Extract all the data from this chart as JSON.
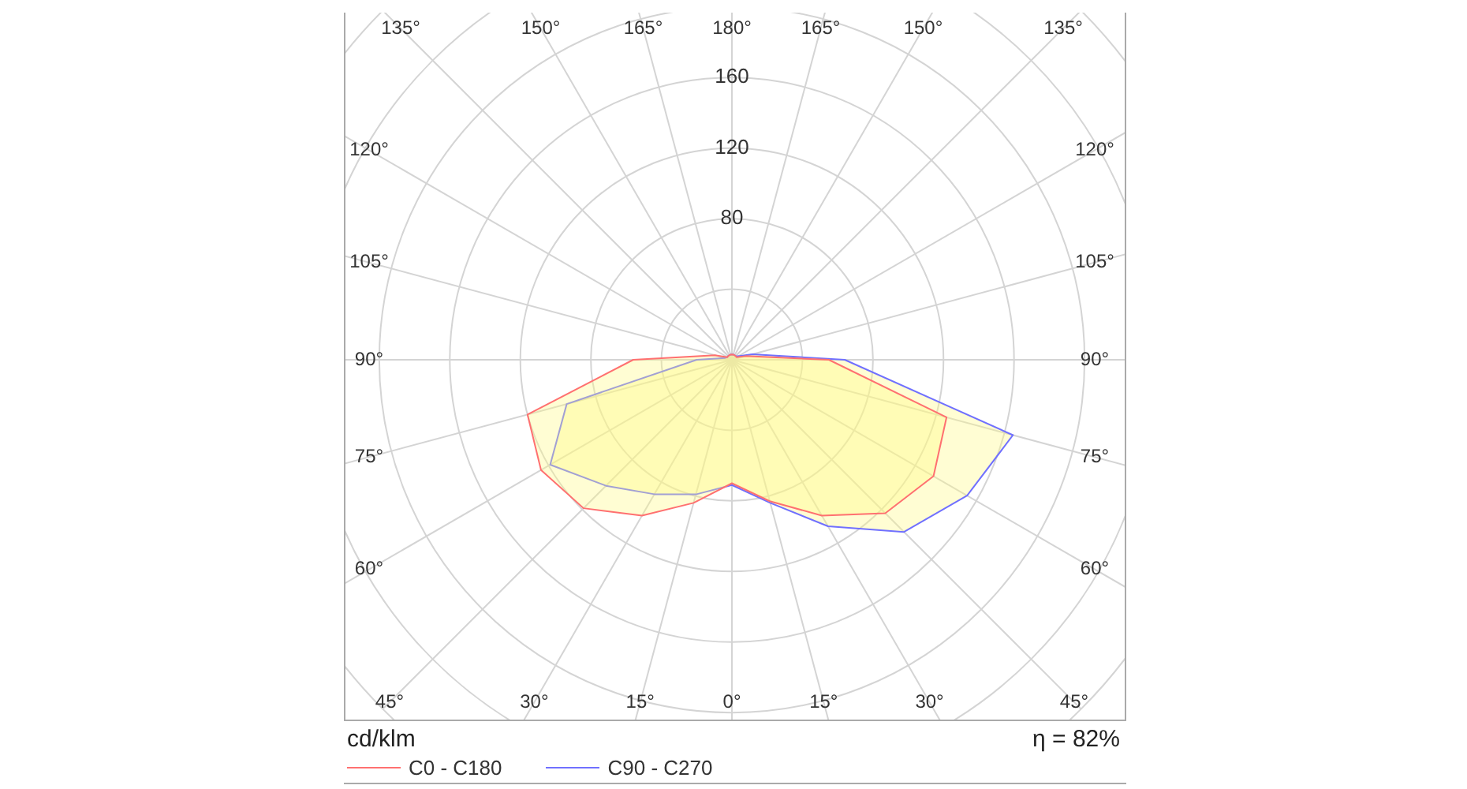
{
  "chart_data": {
    "type": "radar",
    "categories": [
      "180°",
      "165°",
      "150°",
      "135°",
      "120°",
      "105°",
      "90°",
      "75°",
      "60°",
      "45°",
      "30°",
      "15°",
      "0°",
      "15°",
      "30°",
      "45°",
      "60°",
      "75°",
      "90°",
      "105°",
      "120°",
      "135°",
      "150°",
      "165°"
    ],
    "series": [
      {
        "name": "C0 - C180",
        "color": "#ff7070",
        "values": [
          3,
          3,
          3,
          3,
          3,
          8,
          55,
          126,
          132,
          123,
          102,
          83,
          70,
          84,
          102,
          119,
          125,
          120,
          56,
          10,
          3,
          3,
          3,
          3
        ]
      },
      {
        "name": "C90 - C270",
        "color": "#7070ff",
        "values": [
          3,
          3,
          3,
          3,
          4,
          12,
          64,
          165,
          154,
          138,
          109,
          84,
          71,
          79,
          88,
          101,
          119,
          97,
          20,
          4,
          3,
          3,
          3,
          3
        ]
      }
    ],
    "ylim": [
      0,
      280
    ],
    "yticks": [
      80,
      120,
      160
    ],
    "ylabel": "cd/klm",
    "annotations": [
      "η = 82%"
    ],
    "grid": true,
    "legend": "bottom left"
  }
}
